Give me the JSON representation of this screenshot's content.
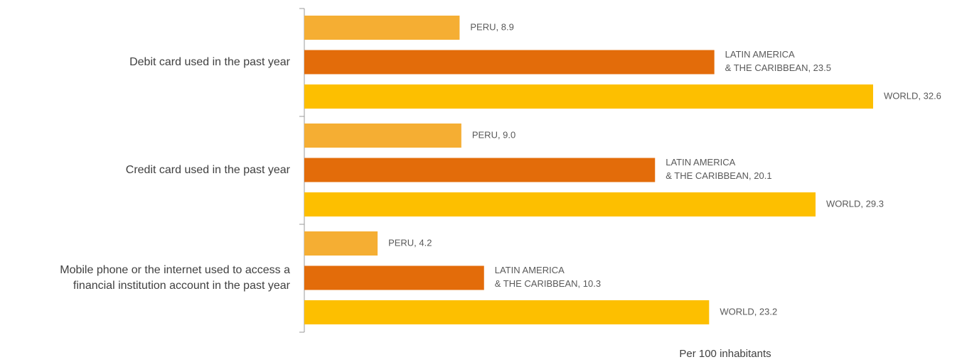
{
  "chart_data": {
    "type": "hbar",
    "categories": [
      "Debit card used in the past year",
      "Credit card used in the past year",
      "Mobile phone or the internet used to access a\nfinancial institution account in the past year"
    ],
    "series": [
      {
        "color": "#f5ae33",
        "values": [
          8.9,
          9.0,
          4.2
        ],
        "value_labels": [
          "PERU, 8.9",
          "PERU, 9.0",
          "PERU, 4.2"
        ]
      },
      {
        "color": "#e36c0a",
        "values": [
          23.5,
          20.1,
          10.3
        ],
        "value_labels": [
          "LATIN AMERICA\n& THE CARIBBEAN, 23.5",
          "LATIN AMERICA\n& THE CARIBBEAN, 20.1",
          "LATIN AMERICA\n& THE CARIBBEAN, 10.3"
        ]
      },
      {
        "color": "#fdbf00",
        "values": [
          32.6,
          29.3,
          23.2
        ],
        "value_labels": [
          "WORLD, 32.6",
          "WORLD, 29.3",
          "WORLD, 23.2"
        ]
      }
    ],
    "x_label": "Per 100 inhabitants"
  }
}
